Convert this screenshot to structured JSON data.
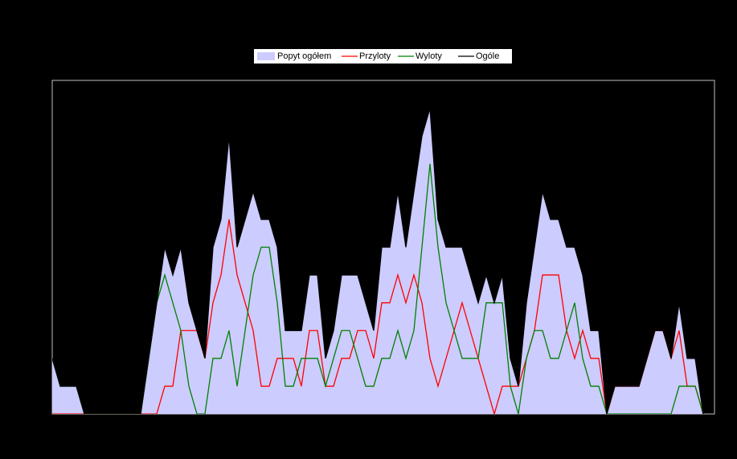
{
  "chart_data": {
    "type": "line",
    "categories": [
      null,
      null,
      null,
      null,
      null,
      null,
      null,
      null,
      null,
      null,
      null,
      null,
      null,
      null,
      null,
      null,
      null,
      null,
      null,
      null,
      null,
      null,
      null,
      null,
      null,
      null,
      null,
      null,
      null,
      null,
      null,
      null,
      null,
      null,
      null,
      null,
      null,
      null,
      null,
      null,
      null,
      null,
      null,
      null,
      null,
      null,
      null,
      null,
      null,
      null,
      null,
      null,
      null,
      null,
      null,
      null,
      null,
      null,
      null,
      null,
      null,
      null,
      null,
      null,
      null,
      null,
      null,
      null,
      null,
      null,
      null,
      null,
      null,
      null,
      null,
      null,
      null,
      null,
      null,
      null,
      null,
      null
    ],
    "ylim": [
      0,
      12
    ],
    "legend": "top",
    "series": [
      {
        "name": "Popyt ogółem",
        "kind": "area",
        "color": "#ccccff",
        "values": [
          2,
          1,
          1,
          1,
          0,
          0,
          0,
          0,
          0,
          0,
          0,
          0,
          2,
          4,
          6,
          5,
          6,
          4,
          3,
          2,
          6,
          7,
          10,
          6,
          7,
          8,
          7,
          7,
          6,
          3,
          3,
          3,
          5,
          5,
          2,
          3,
          5,
          5,
          5,
          4,
          3,
          6,
          6,
          8,
          6,
          8,
          10,
          11,
          7,
          6,
          6,
          6,
          5,
          4,
          5,
          4,
          5,
          2,
          1,
          4,
          6,
          8,
          7,
          7,
          6,
          6,
          5,
          3,
          3,
          0,
          1,
          1,
          1,
          1,
          2,
          3,
          3,
          2,
          4,
          2,
          2,
          0
        ]
      },
      {
        "name": "Przyloty",
        "kind": "line",
        "color": "#ff0000",
        "values": [
          0,
          0,
          0,
          0,
          0,
          0,
          0,
          0,
          0,
          0,
          0,
          0,
          0,
          0,
          1,
          1,
          3,
          3,
          3,
          2,
          4,
          5,
          7,
          5,
          4,
          3,
          1,
          1,
          2,
          2,
          2,
          1,
          3,
          3,
          1,
          1,
          2,
          2,
          3,
          3,
          2,
          4,
          4,
          5,
          4,
          5,
          4,
          2,
          1,
          2,
          3,
          4,
          3,
          2,
          1,
          0,
          1,
          1,
          1,
          2,
          3,
          5,
          5,
          5,
          3,
          2,
          3,
          2,
          2,
          0,
          1,
          1,
          1,
          1,
          2,
          3,
          3,
          2,
          3,
          1,
          1,
          0
        ]
      },
      {
        "name": "Wyloty",
        "kind": "line",
        "color": "#008000",
        "values": [
          2,
          1,
          1,
          1,
          0,
          0,
          0,
          0,
          0,
          0,
          0,
          0,
          2,
          4,
          5,
          4,
          3,
          1,
          0,
          0,
          2,
          2,
          3,
          1,
          3,
          5,
          6,
          6,
          4,
          1,
          1,
          2,
          2,
          2,
          1,
          2,
          3,
          3,
          2,
          1,
          1,
          2,
          2,
          3,
          2,
          3,
          6,
          9,
          6,
          4,
          3,
          2,
          2,
          2,
          4,
          4,
          4,
          1,
          0,
          2,
          3,
          3,
          2,
          2,
          3,
          4,
          2,
          1,
          1,
          0,
          0,
          0,
          0,
          0,
          0,
          0,
          0,
          0,
          1,
          1,
          1,
          0
        ]
      },
      {
        "name": "Ogóle",
        "kind": "line",
        "color": "#000000",
        "values": [
          2,
          1,
          1,
          1,
          0,
          0,
          0,
          0,
          0,
          0,
          0,
          0,
          2,
          4,
          6,
          5,
          6,
          4,
          3,
          2,
          6,
          7,
          10,
          6,
          7,
          8,
          7,
          7,
          6,
          3,
          3,
          3,
          5,
          5,
          2,
          3,
          5,
          5,
          5,
          4,
          3,
          6,
          6,
          8,
          6,
          8,
          10,
          11,
          7,
          6,
          6,
          6,
          5,
          4,
          5,
          4,
          5,
          2,
          1,
          4,
          6,
          8,
          7,
          7,
          6,
          6,
          5,
          3,
          3,
          0,
          1,
          1,
          1,
          1,
          2,
          3,
          3,
          2,
          4,
          2,
          2,
          0
        ]
      }
    ]
  }
}
